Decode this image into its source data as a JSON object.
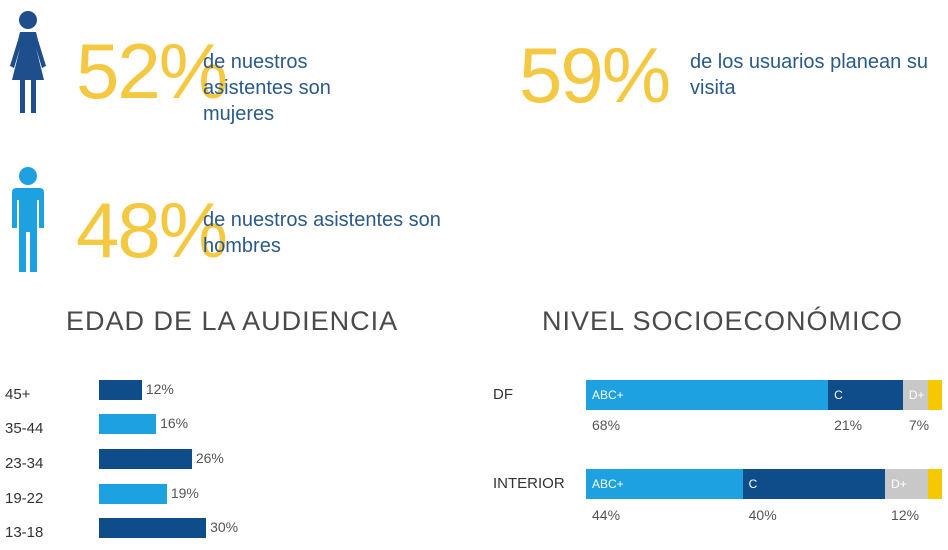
{
  "stats": {
    "women": {
      "value": "52%",
      "text": "de nuestros asistentes son mujeres",
      "color": "#1f4e8c"
    },
    "planning": {
      "value": "59%",
      "text": "de los usuarios planean su visita"
    },
    "men": {
      "value": "48%",
      "text": "de nuestros asistentes son hombres",
      "color": "#1ea1e0"
    }
  },
  "age_chart_title": "EDAD DE LA AUDIENCIA",
  "nse_chart_title": "NIVEL SOCIOECONÓMICO",
  "chart_data": [
    {
      "type": "bar",
      "title": "EDAD DE LA AUDIENCIA",
      "categories": [
        "45+",
        "35-44",
        "23-34",
        "19-22",
        "13-18"
      ],
      "values": [
        12,
        16,
        26,
        19,
        30
      ],
      "value_labels": [
        "12%",
        "16%",
        "26%",
        "19%",
        "30%"
      ],
      "orientation": "horizontal",
      "colors": [
        "#0f4c8a",
        "#1ea1e0",
        "#0f4c8a",
        "#1ea1e0",
        "#0f4c8a"
      ]
    },
    {
      "type": "bar",
      "title": "NIVEL SOCIOECONÓMICO",
      "stacked": true,
      "orientation": "horizontal",
      "categories": [
        "DF",
        "INTERIOR"
      ],
      "series": [
        {
          "name": "ABC+",
          "values": [
            68,
            44
          ],
          "value_labels": [
            "68%",
            "44%"
          ],
          "color": "#1ea1e0"
        },
        {
          "name": "C",
          "values": [
            21,
            40
          ],
          "value_labels": [
            "21%",
            "40%"
          ],
          "color": "#0f4c8a"
        },
        {
          "name": "D+",
          "values": [
            7,
            12
          ],
          "value_labels": [
            "7%",
            "12%"
          ],
          "color": "#c8c8c8"
        },
        {
          "name": "",
          "values": [
            4,
            4
          ],
          "color": "#f5c800"
        }
      ]
    }
  ]
}
